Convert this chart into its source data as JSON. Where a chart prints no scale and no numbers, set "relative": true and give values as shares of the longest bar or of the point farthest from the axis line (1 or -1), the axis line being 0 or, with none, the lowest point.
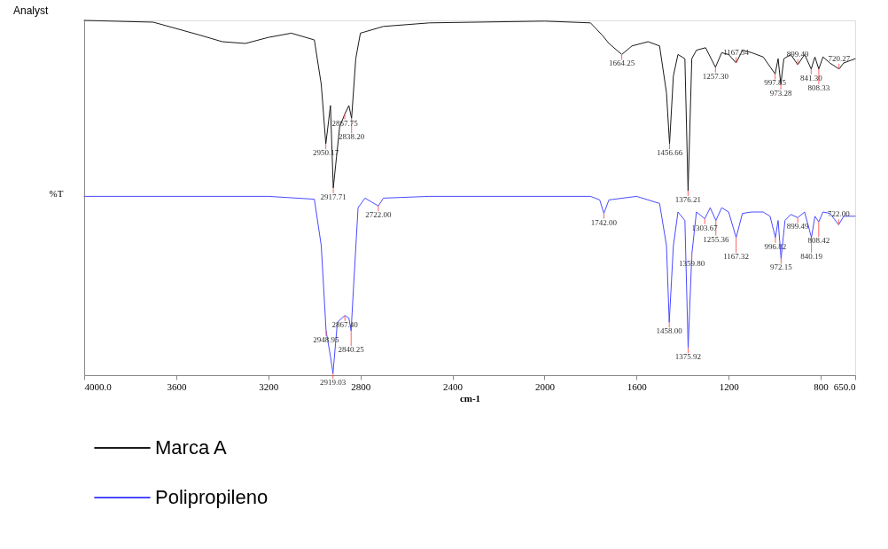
{
  "chart_data": {
    "type": "line",
    "title": "Analyst",
    "xlabel": "cm-1",
    "ylabel": "%T",
    "relative": true,
    "xlim": [
      4000,
      650
    ],
    "xticks": [
      {
        "value": 4000,
        "label": "4000.0"
      },
      3600,
      3200,
      2800,
      2400,
      2000,
      1600,
      1200,
      800,
      {
        "value": 650,
        "label": "650.0"
      }
    ],
    "legend": "bottom left",
    "grid": false,
    "line_style": "solid",
    "marker": "none",
    "series": [
      {
        "name": "Marca A",
        "color": "#1a1a1a",
        "x": [
          4000,
          3700,
          3500,
          3400,
          3300,
          3200,
          3100,
          3000,
          2970,
          2950.17,
          2930,
          2917.71,
          2890,
          2867.75,
          2850,
          2838.2,
          2820,
          2800,
          2700,
          2500,
          2000,
          1800,
          1750,
          1720,
          1664.25,
          1620,
          1550,
          1500,
          1470,
          1456.66,
          1440,
          1420,
          1390,
          1376.21,
          1360,
          1340,
          1300,
          1257.3,
          1230,
          1200,
          1167.54,
          1140,
          1100,
          1050,
          997.85,
          985,
          973.28,
          960,
          930,
          899.49,
          870,
          841.3,
          825,
          808.33,
          790,
          760,
          720.27,
          700,
          650
        ],
        "values": [
          1.0,
          0.995,
          0.959,
          0.94,
          0.935,
          0.952,
          0.964,
          0.945,
          0.82,
          0.652,
          0.76,
          0.528,
          0.7,
          0.736,
          0.76,
          0.724,
          0.892,
          0.964,
          0.983,
          0.993,
          0.998,
          0.993,
          0.959,
          0.935,
          0.904,
          0.928,
          0.94,
          0.928,
          0.796,
          0.652,
          0.844,
          0.904,
          0.892,
          0.52,
          0.892,
          0.916,
          0.923,
          0.868,
          0.909,
          0.904,
          0.88,
          0.916,
          0.909,
          0.897,
          0.849,
          0.892,
          0.82,
          0.892,
          0.904,
          0.875,
          0.904,
          0.863,
          0.897,
          0.863,
          0.897,
          0.88,
          0.863,
          0.88,
          0.892
        ]
      },
      {
        "name": "Polipropileno",
        "color": "#4a4aff",
        "x": [
          4000,
          3200,
          3000,
          2970,
          2948.95,
          2930,
          2919.03,
          2900,
          2880,
          2867.4,
          2850,
          2840.25,
          2830,
          2810,
          2780,
          2722.0,
          2700,
          2500,
          1800,
          1760,
          1742.0,
          1720,
          1600,
          1500,
          1470,
          1458.0,
          1440,
          1420,
          1390,
          1375.92,
          1359.8,
          1340,
          1303.67,
          1280,
          1255.36,
          1230,
          1200,
          1167.32,
          1140,
          1100,
          1050,
          1020,
          996.82,
          985,
          972.15,
          955,
          930,
          899.49,
          870,
          840.19,
          825,
          808.42,
          790,
          760,
          722.0,
          700,
          650
        ],
        "values": [
          0.504,
          0.504,
          0.496,
          0.365,
          0.125,
          0.053,
          0.005,
          0.149,
          0.161,
          0.168,
          0.161,
          0.125,
          0.245,
          0.472,
          0.499,
          0.477,
          0.499,
          0.504,
          0.504,
          0.494,
          0.456,
          0.494,
          0.504,
          0.484,
          0.365,
          0.149,
          0.365,
          0.46,
          0.436,
          0.077,
          0.341,
          0.46,
          0.441,
          0.472,
          0.436,
          0.472,
          0.46,
          0.388,
          0.456,
          0.46,
          0.46,
          0.448,
          0.388,
          0.436,
          0.329,
          0.436,
          0.453,
          0.444,
          0.46,
          0.388,
          0.448,
          0.432,
          0.46,
          0.456,
          0.424,
          0.448,
          0.448
        ]
      }
    ],
    "annotations": [
      {
        "text": "2950.17",
        "x": 2950.17,
        "y": 0.652
      },
      {
        "text": "2917.71",
        "x": 2917.71,
        "y": 0.528
      },
      {
        "text": "2867.75",
        "x": 2867.75,
        "y": 0.736
      },
      {
        "text": "2838.20",
        "x": 2838.2,
        "y": 0.724
      },
      {
        "text": "1664.25",
        "x": 1664.25,
        "y": 0.904
      },
      {
        "text": "1456.66",
        "x": 1456.66,
        "y": 0.652
      },
      {
        "text": "1376.21",
        "x": 1376.21,
        "y": 0.52
      },
      {
        "text": "1257.30",
        "x": 1257.3,
        "y": 0.868
      },
      {
        "text": "1167.54",
        "x": 1167.54,
        "y": 0.88
      },
      {
        "text": "997.85",
        "x": 997.85,
        "y": 0.849
      },
      {
        "text": "973.28",
        "x": 973.28,
        "y": 0.82
      },
      {
        "text": "899.49",
        "x": 899.49,
        "y": 0.875
      },
      {
        "text": "841.30",
        "x": 841.3,
        "y": 0.863
      },
      {
        "text": "808.33",
        "x": 808.33,
        "y": 0.863
      },
      {
        "text": "720.27",
        "x": 720.27,
        "y": 0.863
      },
      {
        "text": "2722.00",
        "x": 2722.0,
        "y": 0.477
      },
      {
        "text": "1742.00",
        "x": 1742.0,
        "y": 0.456
      },
      {
        "text": "1303.67",
        "x": 1303.67,
        "y": 0.441
      },
      {
        "text": "1255.36",
        "x": 1255.36,
        "y": 0.436
      },
      {
        "text": "1167.32",
        "x": 1167.32,
        "y": 0.388
      },
      {
        "text": "1359.80",
        "x": 1359.8,
        "y": 0.341
      },
      {
        "text": "996.82",
        "x": 996.82,
        "y": 0.388
      },
      {
        "text": "972.15",
        "x": 972.15,
        "y": 0.329
      },
      {
        "text": "899.49",
        "x": 899.49,
        "y": 0.444
      },
      {
        "text": "808.42",
        "x": 808.42,
        "y": 0.432
      },
      {
        "text": "722.00",
        "x": 722.0,
        "y": 0.424
      },
      {
        "text": "840.19",
        "x": 840.19,
        "y": 0.388
      },
      {
        "text": "1458.00",
        "x": 1458.0,
        "y": 0.149
      },
      {
        "text": "1375.92",
        "x": 1375.92,
        "y": 0.077
      },
      {
        "text": "2948.95",
        "x": 2948.95,
        "y": 0.125
      },
      {
        "text": "2867.40",
        "x": 2867.4,
        "y": 0.168
      },
      {
        "text": "2919.03",
        "x": 2919.03,
        "y": 0.005
      },
      {
        "text": "2840.25",
        "x": 2840.25,
        "y": 0.125
      }
    ]
  }
}
